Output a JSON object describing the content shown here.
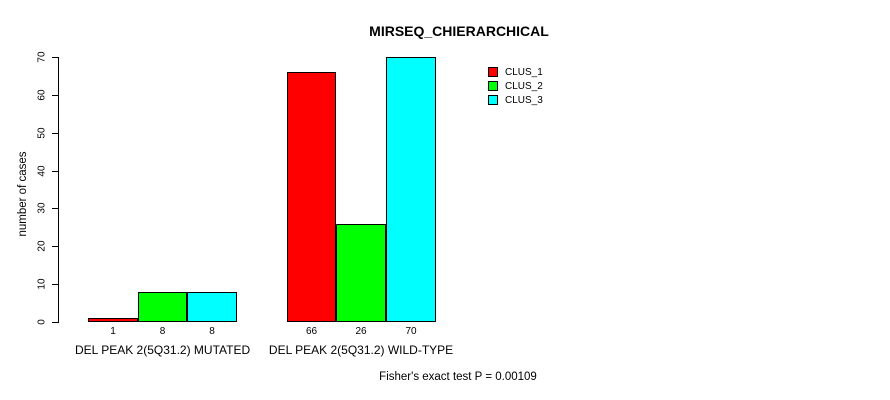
{
  "title": "MIRSEQ_CHIERARCHICAL",
  "footer_note": "Fisher's exact test P = 0.00109",
  "chart_data": {
    "type": "bar",
    "title": "MIRSEQ_CHIERARCHICAL",
    "xlabel": "",
    "ylabel": "number of cases",
    "ylim": [
      0,
      70
    ],
    "y_ticks": [
      0,
      10,
      20,
      30,
      40,
      50,
      60,
      70
    ],
    "grid": false,
    "legend_position": "top-right",
    "categories": [
      "DEL PEAK 2(5Q31.2) MUTATED",
      "DEL PEAK 2(5Q31.2) WILD-TYPE"
    ],
    "series": [
      {
        "name": "CLUS_1",
        "color": "#ff0000",
        "values": [
          1,
          66
        ]
      },
      {
        "name": "CLUS_2",
        "color": "#00ff00",
        "values": [
          8,
          26
        ]
      },
      {
        "name": "CLUS_3",
        "color": "#00ffff",
        "values": [
          8,
          70
        ]
      }
    ],
    "bar_value_labels": [
      [
        "1",
        "8",
        "8"
      ],
      [
        "66",
        "26",
        "70"
      ]
    ],
    "annotation": "Fisher's exact test P = 0.00109"
  }
}
